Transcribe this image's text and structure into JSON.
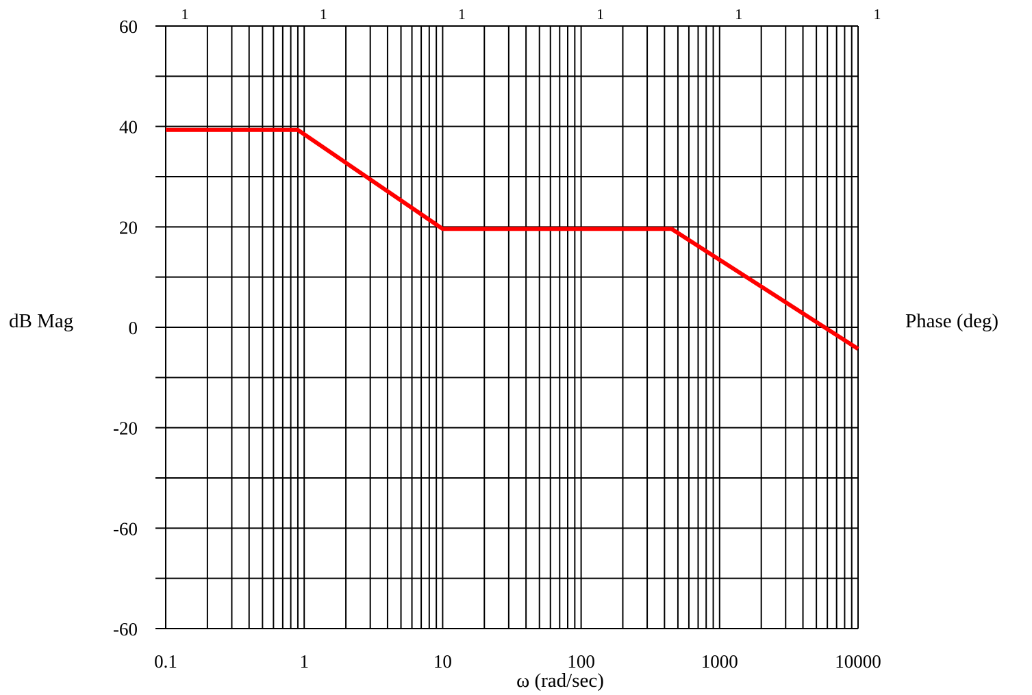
{
  "chart_data": {
    "type": "line",
    "x_scale": "log",
    "xlabel": "ω (rad/sec)",
    "ylabel": "dB Mag",
    "ylabel_right": "Phase (deg)",
    "xlim": [
      0.1,
      10000
    ],
    "x_tick_labels": [
      "0.1",
      "1",
      "10",
      "100",
      "1000",
      "10000"
    ],
    "top_tick_labels": [
      "1",
      "1",
      "1",
      "1",
      "1",
      "1"
    ],
    "y_tick_labels": [
      "60",
      "40",
      "20",
      "0",
      "-20",
      "-60",
      "-60"
    ],
    "grid": true,
    "line_color": "#ff0000",
    "series": [
      {
        "x": [
          0.1,
          0.9,
          10,
          450,
          10000
        ],
        "y": [
          39.3,
          39.3,
          19.6,
          19.6,
          -4.3
        ]
      }
    ]
  }
}
